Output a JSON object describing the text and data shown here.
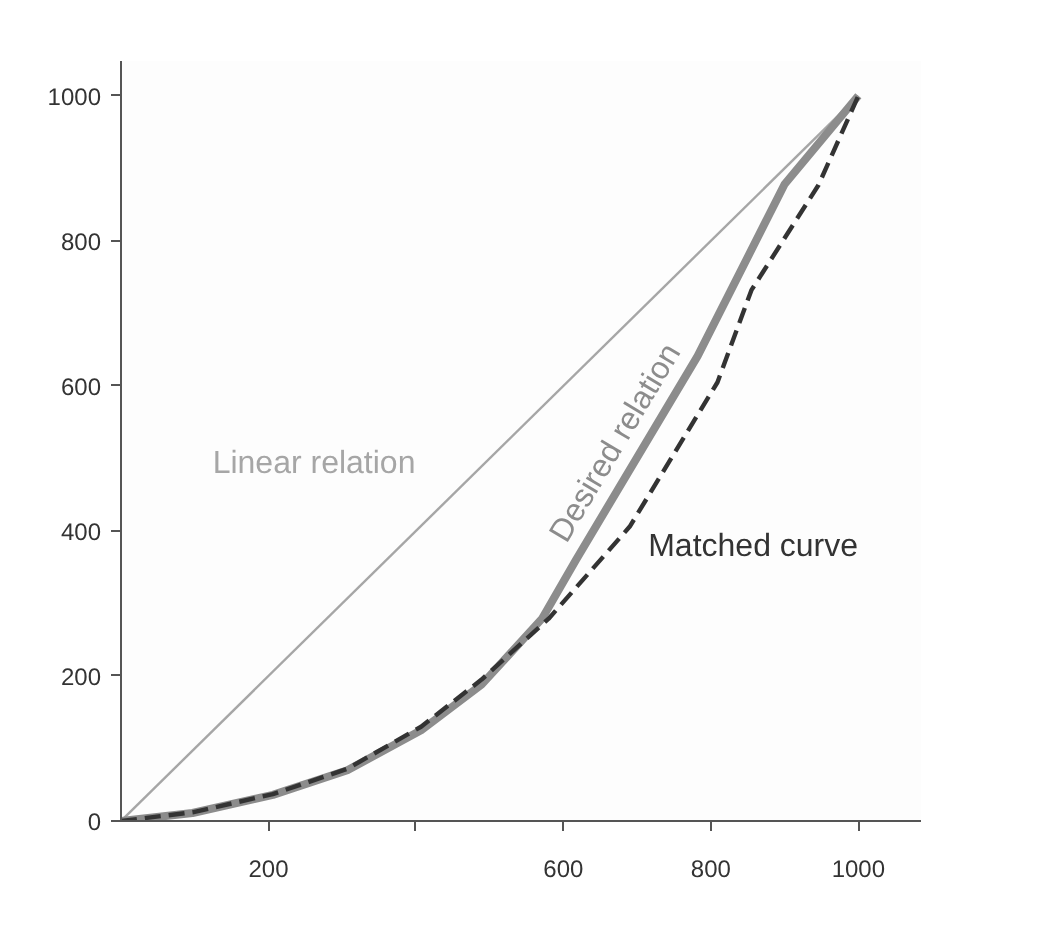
{
  "chart_data": {
    "type": "line",
    "xlim": [
      0,
      1085
    ],
    "ylim": [
      0,
      1048
    ],
    "xticks": [
      200,
      {
        "value": 400,
        "label": null
      },
      600,
      800,
      1000
    ],
    "yticks": [
      0,
      200,
      400,
      600,
      800,
      1000
    ],
    "grid": false,
    "legend": false,
    "marker": "none",
    "series": [
      {
        "name": "Linear relation",
        "color": "#a6a6a6",
        "x": [
          0,
          1000
        ],
        "values": [
          0,
          1000
        ]
      },
      {
        "name": "Desired relation",
        "color": "#8c8c8c",
        "x": [
          0,
          97,
          206,
          307,
          407,
          489,
          571,
          617,
          782,
          900,
          1000
        ],
        "values": [
          0,
          11,
          36,
          70,
          125,
          188,
          279,
          360,
          641,
          878,
          1000
        ]
      },
      {
        "name": "Matched curve",
        "color": "#333333",
        "line_style": "dashed",
        "x": [
          0,
          97,
          206,
          307,
          407,
          489,
          580,
          690,
          809,
          855,
          946,
          1000
        ],
        "values": [
          0,
          12,
          37,
          72,
          130,
          195,
          279,
          406,
          605,
          732,
          877,
          1000
        ]
      }
    ]
  }
}
